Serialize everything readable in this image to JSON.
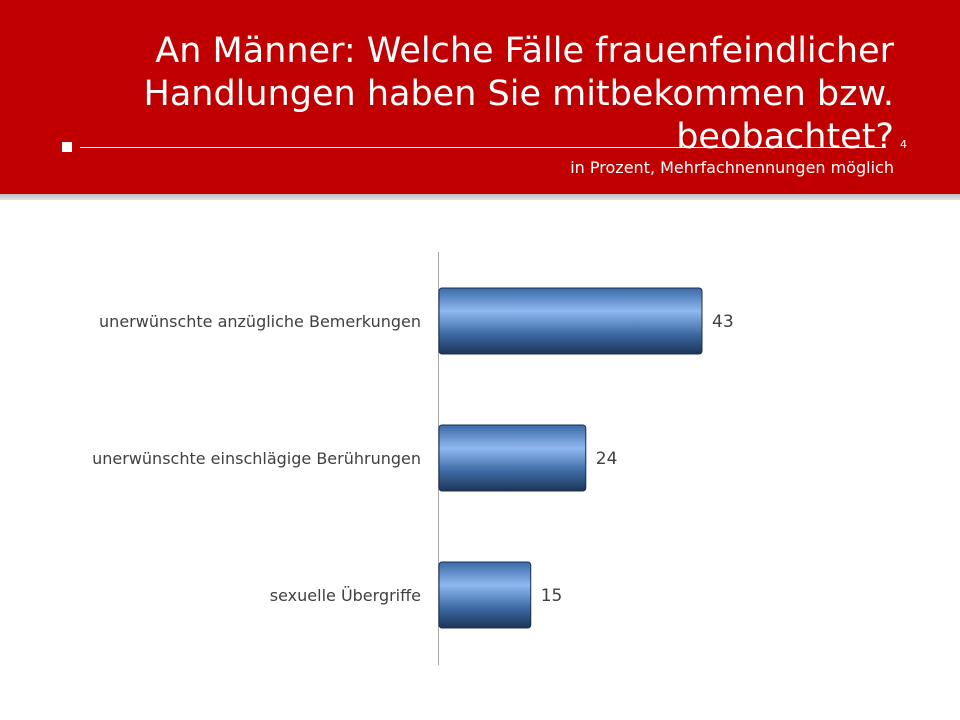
{
  "header": {
    "title": "An Männer: Welche Fälle frauenfeindlicher Handlungen haben Sie mitbekommen bzw. beobachtet?",
    "page_number": "4",
    "subtitle": "in Prozent, Mehrfachnennungen möglich"
  },
  "colors": {
    "header_red": "#c00000",
    "bar_blue": "#4f81bd"
  },
  "chart_data": {
    "type": "bar",
    "orientation": "horizontal",
    "title": "",
    "xlabel": "",
    "ylabel": "",
    "categories": [
      "unerwünschte anzügliche Bemerkungen",
      "unerwünschte einschlägige Berührungen",
      "sexuelle Übergriffe"
    ],
    "values": [
      43,
      24,
      15
    ],
    "value_labels": [
      "43",
      "24",
      "15"
    ],
    "xlim": [
      0,
      80
    ],
    "grid": false,
    "legend": "none"
  }
}
